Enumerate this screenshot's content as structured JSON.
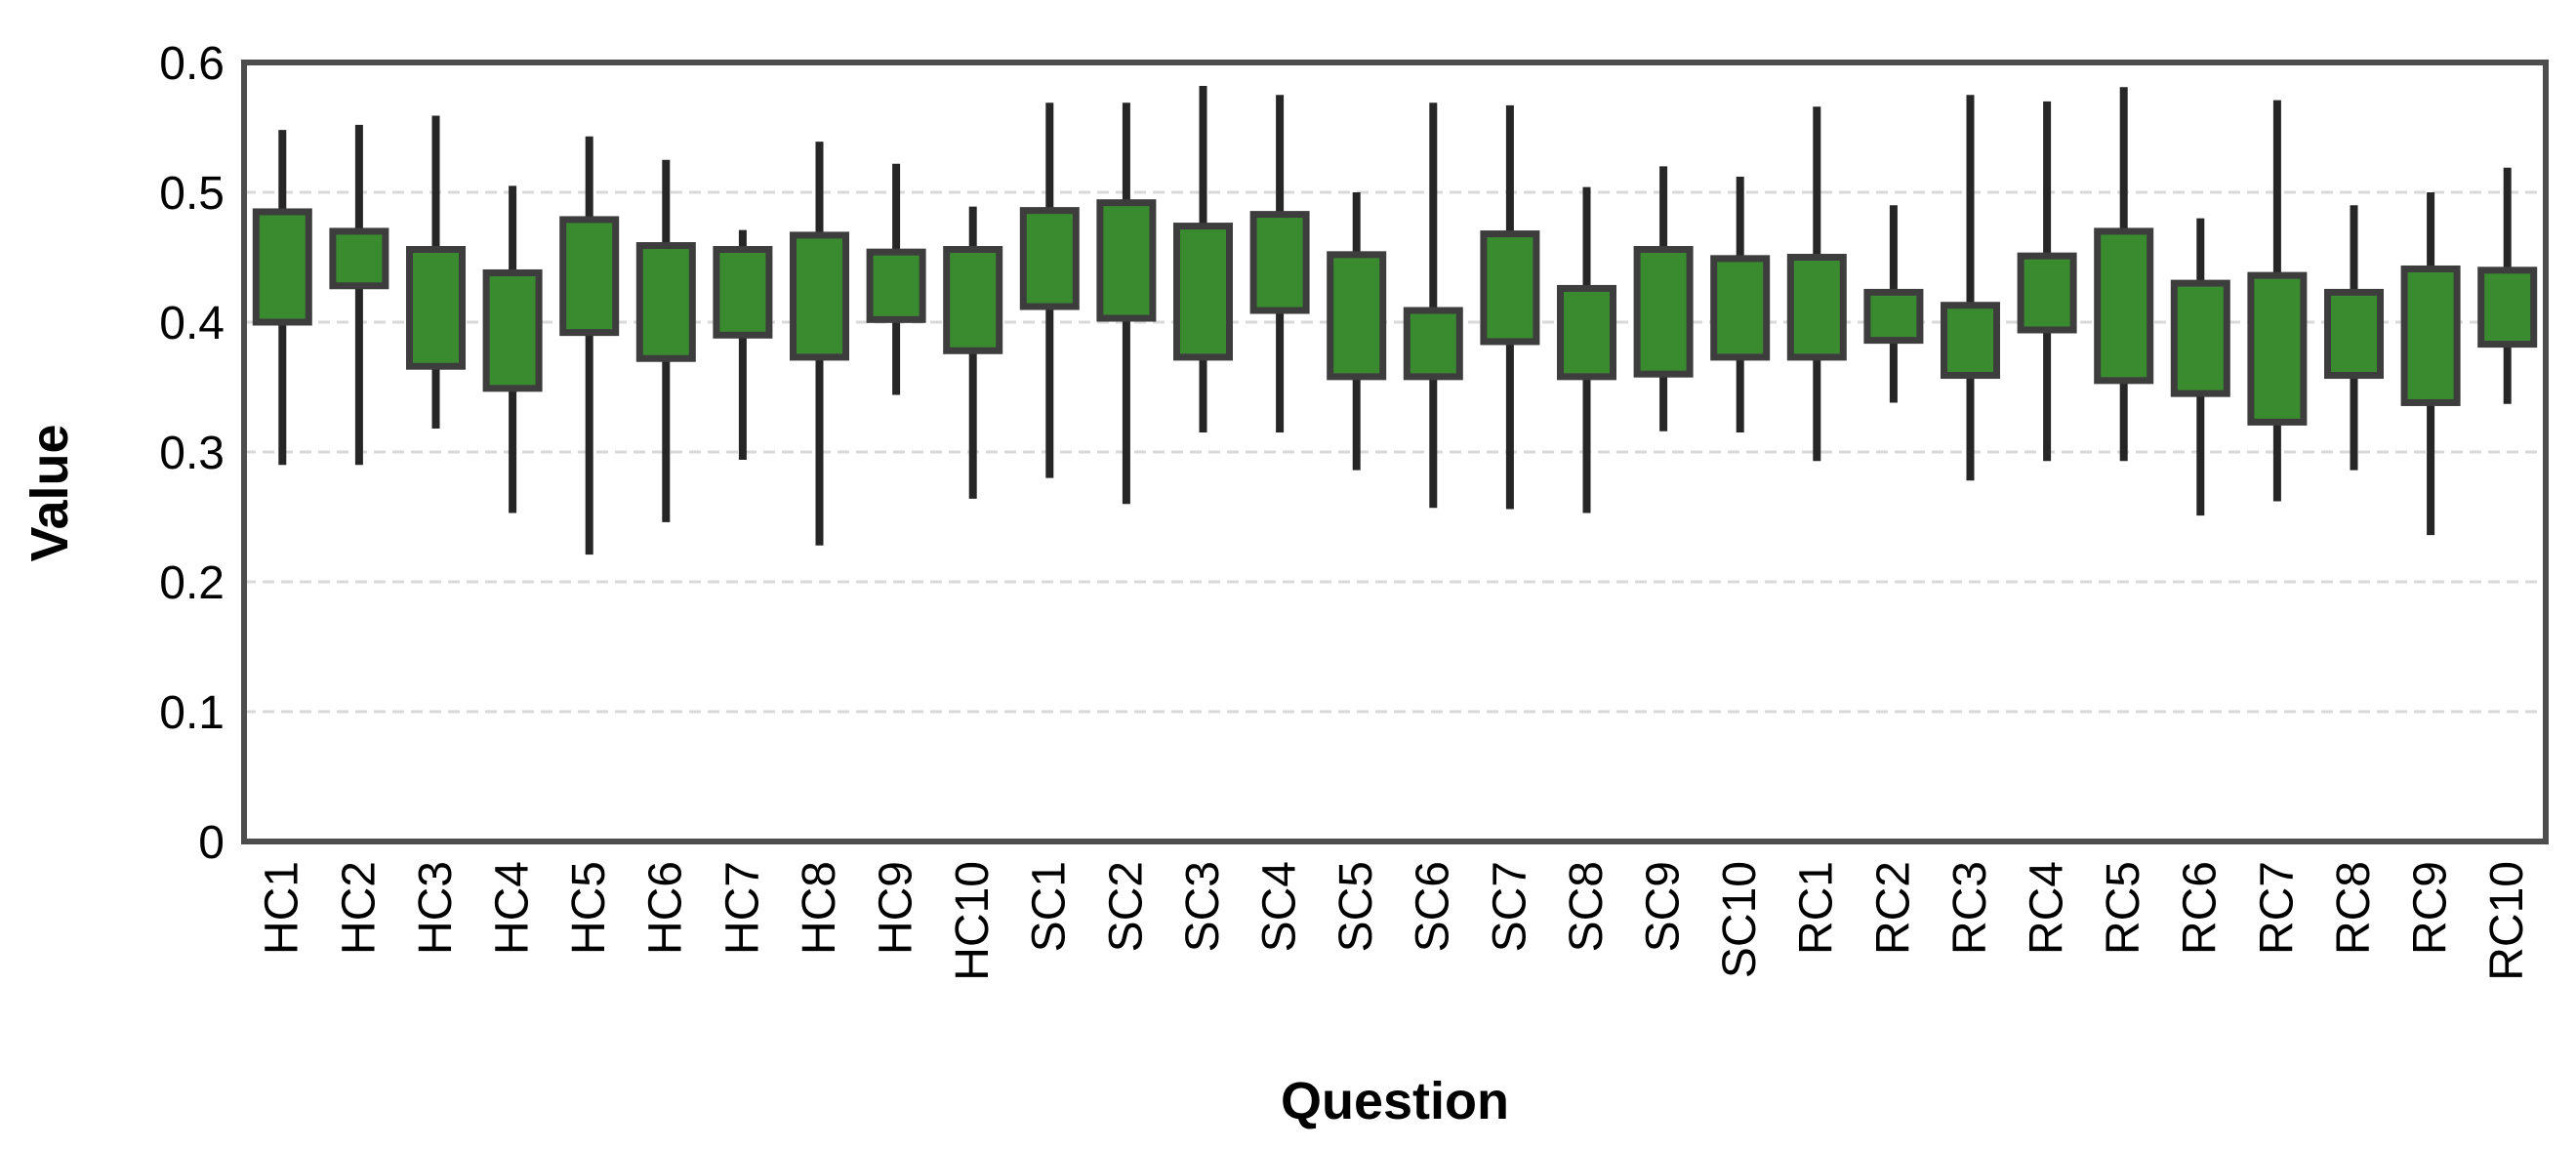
{
  "figure": {
    "background_color": "#ffffff",
    "plot_border_color": "#4d4d4d",
    "gridline_color": "#d9d9d9",
    "box_fill_color": "#3a8a2f",
    "box_border_color": "#3d3d3d",
    "whisker_color": "#262626"
  },
  "chart_data": {
    "type": "boxplot",
    "title": "",
    "xlabel": "Question",
    "ylabel": "Value",
    "ylim": [
      0,
      0.6
    ],
    "ytick_step": 0.1,
    "grid": true,
    "legend": false,
    "y_ticks": [
      {
        "label": "0.6",
        "value": 0.6
      },
      {
        "label": "0.5",
        "value": 0.5
      },
      {
        "label": "0.4",
        "value": 0.4
      },
      {
        "label": "0.3",
        "value": 0.3
      },
      {
        "label": "0.2",
        "value": 0.2
      },
      {
        "label": "0.1",
        "value": 0.1
      },
      {
        "label": "0",
        "value": 0.0
      }
    ],
    "categories": [
      "HC1",
      "HC2",
      "HC3",
      "HC4",
      "HC5",
      "HC6",
      "HC7",
      "HC8",
      "HC9",
      "HC10",
      "SC1",
      "SC2",
      "SC3",
      "SC4",
      "SC5",
      "SC6",
      "SC7",
      "SC8",
      "SC9",
      "SC10",
      "RC1",
      "RC2",
      "RC3",
      "RC4",
      "RC5",
      "RC6",
      "RC7",
      "RC8",
      "RC9",
      "RC10"
    ],
    "boxes": [
      {
        "label": "HC1",
        "whisker_low": 0.29,
        "box_low": 0.4,
        "box_high": 0.485,
        "whisker_high": 0.548
      },
      {
        "label": "HC2",
        "whisker_low": 0.29,
        "box_low": 0.428,
        "box_high": 0.47,
        "whisker_high": 0.552
      },
      {
        "label": "HC3",
        "whisker_low": 0.318,
        "box_low": 0.366,
        "box_high": 0.456,
        "whisker_high": 0.559
      },
      {
        "label": "HC4",
        "whisker_low": 0.253,
        "box_low": 0.349,
        "box_high": 0.438,
        "whisker_high": 0.505
      },
      {
        "label": "HC5",
        "whisker_low": 0.221,
        "box_low": 0.392,
        "box_high": 0.479,
        "whisker_high": 0.543
      },
      {
        "label": "HC6",
        "whisker_low": 0.246,
        "box_low": 0.372,
        "box_high": 0.459,
        "whisker_high": 0.525
      },
      {
        "label": "HC7",
        "whisker_low": 0.294,
        "box_low": 0.39,
        "box_high": 0.456,
        "whisker_high": 0.471
      },
      {
        "label": "HC8",
        "whisker_low": 0.228,
        "box_low": 0.373,
        "box_high": 0.467,
        "whisker_high": 0.539
      },
      {
        "label": "HC9",
        "whisker_low": 0.344,
        "box_low": 0.402,
        "box_high": 0.454,
        "whisker_high": 0.522
      },
      {
        "label": "HC10",
        "whisker_low": 0.264,
        "box_low": 0.378,
        "box_high": 0.456,
        "whisker_high": 0.489
      },
      {
        "label": "SC1",
        "whisker_low": 0.28,
        "box_low": 0.412,
        "box_high": 0.486,
        "whisker_high": 0.569
      },
      {
        "label": "SC2",
        "whisker_low": 0.26,
        "box_low": 0.403,
        "box_high": 0.492,
        "whisker_high": 0.569
      },
      {
        "label": "SC3",
        "whisker_low": 0.315,
        "box_low": 0.373,
        "box_high": 0.474,
        "whisker_high": 0.582
      },
      {
        "label": "SC4",
        "whisker_low": 0.315,
        "box_low": 0.409,
        "box_high": 0.483,
        "whisker_high": 0.575
      },
      {
        "label": "SC5",
        "whisker_low": 0.286,
        "box_low": 0.358,
        "box_high": 0.452,
        "whisker_high": 0.5
      },
      {
        "label": "SC6",
        "whisker_low": 0.257,
        "box_low": 0.358,
        "box_high": 0.409,
        "whisker_high": 0.569
      },
      {
        "label": "SC7",
        "whisker_low": 0.256,
        "box_low": 0.385,
        "box_high": 0.468,
        "whisker_high": 0.567
      },
      {
        "label": "SC8",
        "whisker_low": 0.253,
        "box_low": 0.358,
        "box_high": 0.426,
        "whisker_high": 0.504
      },
      {
        "label": "SC9",
        "whisker_low": 0.316,
        "box_low": 0.36,
        "box_high": 0.456,
        "whisker_high": 0.52
      },
      {
        "label": "SC10",
        "whisker_low": 0.315,
        "box_low": 0.373,
        "box_high": 0.449,
        "whisker_high": 0.512
      },
      {
        "label": "RC1",
        "whisker_low": 0.293,
        "box_low": 0.373,
        "box_high": 0.45,
        "whisker_high": 0.566
      },
      {
        "label": "RC2",
        "whisker_low": 0.338,
        "box_low": 0.386,
        "box_high": 0.423,
        "whisker_high": 0.49
      },
      {
        "label": "RC3",
        "whisker_low": 0.278,
        "box_low": 0.359,
        "box_high": 0.413,
        "whisker_high": 0.575
      },
      {
        "label": "RC4",
        "whisker_low": 0.293,
        "box_low": 0.394,
        "box_high": 0.451,
        "whisker_high": 0.57
      },
      {
        "label": "RC5",
        "whisker_low": 0.293,
        "box_low": 0.355,
        "box_high": 0.47,
        "whisker_high": 0.581
      },
      {
        "label": "RC6",
        "whisker_low": 0.251,
        "box_low": 0.345,
        "box_high": 0.43,
        "whisker_high": 0.48
      },
      {
        "label": "RC7",
        "whisker_low": 0.262,
        "box_low": 0.323,
        "box_high": 0.436,
        "whisker_high": 0.571
      },
      {
        "label": "RC8",
        "whisker_low": 0.286,
        "box_low": 0.359,
        "box_high": 0.423,
        "whisker_high": 0.49
      },
      {
        "label": "RC9",
        "whisker_low": 0.236,
        "box_low": 0.338,
        "box_high": 0.441,
        "whisker_high": 0.5
      },
      {
        "label": "RC10",
        "whisker_low": 0.337,
        "box_low": 0.383,
        "box_high": 0.44,
        "whisker_high": 0.519
      }
    ]
  }
}
